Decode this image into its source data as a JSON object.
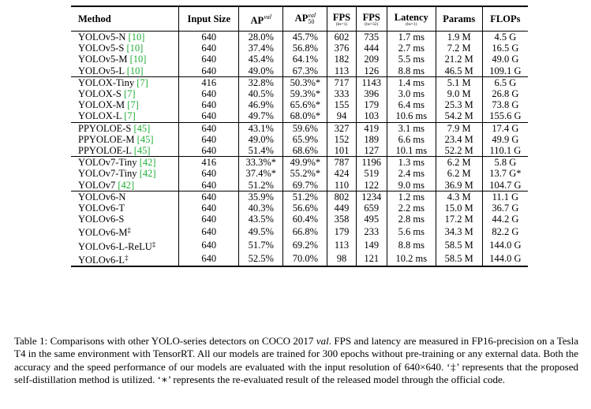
{
  "table": {
    "headers": {
      "method": "Method",
      "input_size": "Input Size",
      "ap_val": "AP",
      "ap_val_sup": "val",
      "ap50_val": "AP",
      "ap50_val_sup": "val",
      "ap50_val_sub": "50",
      "fps_bs1": "FPS",
      "fps_bs1_sub": "(bs=1)",
      "fps_bs32": "FPS",
      "fps_bs32_sub": "(bs=32)",
      "latency": "Latency",
      "latency_sub": "(bs=1)",
      "params": "Params",
      "flops": "FLOPs"
    },
    "groups": [
      {
        "rows": [
          {
            "name": "YOLOv5-N",
            "cite": "[10]",
            "mark": "",
            "input": "640",
            "ap": "28.0%",
            "ap50": "45.7%",
            "fps1": "602",
            "fps32": "735",
            "lat": "1.7 ms",
            "params": "1.9 M",
            "flops": "4.5 G"
          },
          {
            "name": "YOLOv5-S",
            "cite": "[10]",
            "mark": "",
            "input": "640",
            "ap": "37.4%",
            "ap50": "56.8%",
            "fps1": "376",
            "fps32": "444",
            "lat": "2.7 ms",
            "params": "7.2 M",
            "flops": "16.5 G"
          },
          {
            "name": "YOLOv5-M",
            "cite": "[10]",
            "mark": "",
            "input": "640",
            "ap": "45.4%",
            "ap50": "64.1%",
            "fps1": "182",
            "fps32": "209",
            "lat": "5.5 ms",
            "params": "21.2 M",
            "flops": "49.0 G"
          },
          {
            "name": "YOLOv5-L",
            "cite": "[10]",
            "mark": "",
            "input": "640",
            "ap": "49.0%",
            "ap50": "67.3%",
            "fps1": "113",
            "fps32": "126",
            "lat": "8.8 ms",
            "params": "46.5 M",
            "flops": "109.1 G"
          }
        ]
      },
      {
        "rows": [
          {
            "name": "YOLOX-Tiny",
            "cite": "[7]",
            "mark": "",
            "input": "416",
            "ap": "32.8%",
            "ap50": "50.3%*",
            "fps1": "717",
            "fps32": "1143",
            "lat": "1.4 ms",
            "params": "5.1 M",
            "flops": "6.5 G"
          },
          {
            "name": "YOLOX-S",
            "cite": "[7]",
            "mark": "",
            "input": "640",
            "ap": "40.5%",
            "ap50": "59.3%*",
            "fps1": "333",
            "fps32": "396",
            "lat": "3.0 ms",
            "params": "9.0 M",
            "flops": "26.8 G"
          },
          {
            "name": "YOLOX-M",
            "cite": "[7]",
            "mark": "",
            "input": "640",
            "ap": "46.9%",
            "ap50": "65.6%*",
            "fps1": "155",
            "fps32": "179",
            "lat": "6.4 ms",
            "params": "25.3 M",
            "flops": "73.8 G"
          },
          {
            "name": "YOLOX-L",
            "cite": "[7]",
            "mark": "",
            "input": "640",
            "ap": "49.7%",
            "ap50": "68.0%*",
            "fps1": "94",
            "fps32": "103",
            "lat": "10.6 ms",
            "params": "54.2 M",
            "flops": "155.6 G"
          }
        ]
      },
      {
        "rows": [
          {
            "name": "PPYOLOE-S",
            "cite": "[45]",
            "mark": "",
            "input": "640",
            "ap": "43.1%",
            "ap50": "59.6%",
            "fps1": "327",
            "fps32": "419",
            "lat": "3.1 ms",
            "params": "7.9 M",
            "flops": "17.4 G"
          },
          {
            "name": "PPYOLOE-M",
            "cite": "[45]",
            "mark": "",
            "input": "640",
            "ap": "49.0%",
            "ap50": "65.9%",
            "fps1": "152",
            "fps32": "189",
            "lat": "6.6 ms",
            "params": "23.4 M",
            "flops": "49.9 G"
          },
          {
            "name": "PPYOLOE-L",
            "cite": "[45]",
            "mark": "",
            "input": "640",
            "ap": "51.4%",
            "ap50": "68.6%",
            "fps1": "101",
            "fps32": "127",
            "lat": "10.1 ms",
            "params": "52.2 M",
            "flops": "110.1 G"
          }
        ]
      },
      {
        "rows": [
          {
            "name": "YOLOv7-Tiny",
            "cite": "[42]",
            "mark": "",
            "input": "416",
            "ap": "33.3%*",
            "ap50": "49.9%*",
            "fps1": "787",
            "fps32": "1196",
            "lat": "1.3 ms",
            "params": "6.2 M",
            "flops": "5.8 G"
          },
          {
            "name": "YOLOv7-Tiny",
            "cite": "[42]",
            "mark": "",
            "input": "640",
            "ap": "37.4%*",
            "ap50": "55.2%*",
            "fps1": "424",
            "fps32": "519",
            "lat": "2.4 ms",
            "params": "6.2 M",
            "flops": "13.7 G*"
          },
          {
            "name": "YOLOv7",
            "cite": "[42]",
            "mark": "",
            "input": "640",
            "ap": "51.2%",
            "ap50": "69.7%",
            "fps1": "110",
            "fps32": "122",
            "lat": "9.0 ms",
            "params": "36.9 M",
            "flops": "104.7 G"
          }
        ]
      },
      {
        "rows": [
          {
            "name": "YOLOv6-N",
            "cite": "",
            "mark": "",
            "input": "640",
            "ap": "35.9%",
            "ap50": "51.2%",
            "fps1": "802",
            "fps32": "1234",
            "lat": "1.2 ms",
            "params": "4.3 M",
            "flops": "11.1 G"
          },
          {
            "name": "YOLOv6-T",
            "cite": "",
            "mark": "",
            "input": "640",
            "ap": "40.3%",
            "ap50": "56.6%",
            "fps1": "449",
            "fps32": "659",
            "lat": "2.2 ms",
            "params": "15.0 M",
            "flops": "36.7 G"
          },
          {
            "name": "YOLOv6-S",
            "cite": "",
            "mark": "",
            "input": "640",
            "ap": "43.5%",
            "ap50": "60.4%",
            "fps1": "358",
            "fps32": "495",
            "lat": "2.8 ms",
            "params": "17.2 M",
            "flops": "44.2 G"
          },
          {
            "name": "YOLOv6-M",
            "cite": "",
            "mark": "‡",
            "input": "640",
            "ap": "49.5%",
            "ap50": "66.8%",
            "fps1": "179",
            "fps32": "233",
            "lat": "5.6 ms",
            "params": "34.3 M",
            "flops": "82.2 G"
          },
          {
            "name": "YOLOv6-L-ReLU",
            "cite": "",
            "mark": "‡",
            "input": "640",
            "ap": "51.7%",
            "ap50": "69.2%",
            "fps1": "113",
            "fps32": "149",
            "lat": "8.8 ms",
            "params": "58.5 M",
            "flops": "144.0 G"
          },
          {
            "name": "YOLOv6-L",
            "cite": "",
            "mark": "‡",
            "input": "640",
            "ap": "52.5%",
            "ap50": "70.0%",
            "fps1": "98",
            "fps32": "121",
            "lat": "10.2 ms",
            "params": "58.5 M",
            "flops": "144.0 G"
          }
        ]
      }
    ]
  },
  "caption": {
    "label": "Table 1:",
    "text_before_val": " Comparisons with other YOLO-series detectors on COCO 2017 ",
    "val_word": "val",
    "text_after_val": ". FPS and latency are measured in FP16-precision on a Tesla T4 in the same environment with TensorRT. All our models are trained for 300 epochs without pre-training or any external data. Both the accuracy and the speed performance of our models are evaluated with the input resolution of 640×640. ‘‡’ represents that the proposed self-distillation method is utilized. ‘∗’ represents the re-evaluated result of the released model through the official code."
  }
}
